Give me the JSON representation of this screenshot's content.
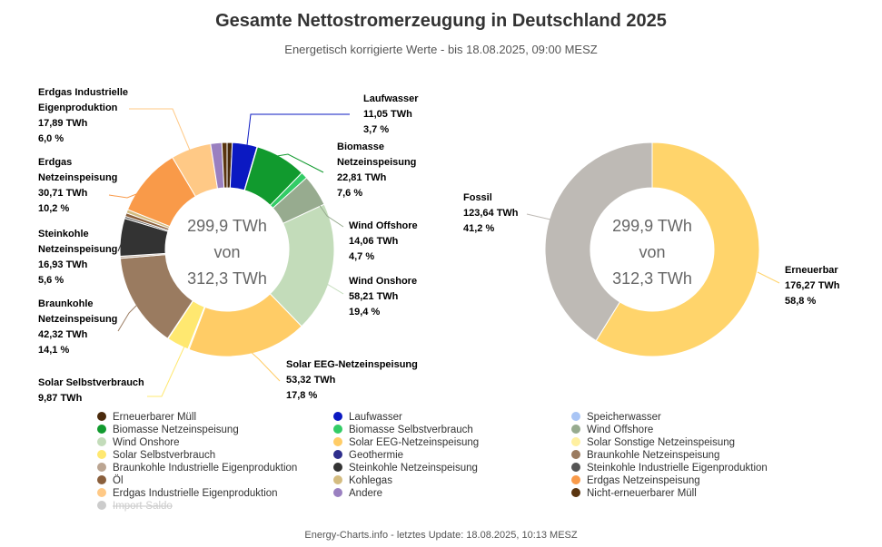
{
  "title": "Gesamte Nettostromerzeugung in Deutschland 2025",
  "subtitle": "Energetisch korrigierte Werte - bis 18.08.2025, 09:00 MESZ",
  "footer": "Energy-Charts.info - letztes Update: 18.08.2025, 10:13 MESZ",
  "chart_data": [
    {
      "type": "pie",
      "variant": "donut",
      "center_text": [
        "299,9 TWh",
        "von",
        "312,3 TWh"
      ],
      "unit": "TWh",
      "slices": [
        {
          "name": "Erneuerbarer Müll",
          "value": 2.3,
          "color": "#4a2a0c",
          "label": null
        },
        {
          "name": "Laufwasser",
          "value": 11.05,
          "color": "#0b19c2",
          "label": [
            "Laufwasser",
            "11,05 TWh",
            "3,7 %"
          ]
        },
        {
          "name": "Speicherwasser",
          "value": 0.2,
          "color": "#a9c5f5",
          "label": null
        },
        {
          "name": "Biomasse Netzeinspeisung",
          "value": 22.81,
          "color": "#119a2e",
          "label": [
            "Biomasse",
            "Netzeinspeisung",
            "22,81 TWh",
            "7,6 %"
          ]
        },
        {
          "name": "Biomasse Selbstverbrauch",
          "value": 3.0,
          "color": "#33cc66",
          "label": null
        },
        {
          "name": "Wind Offshore",
          "value": 14.06,
          "color": "#97ab8f",
          "label": [
            "Wind Offshore",
            "14,06 TWh",
            "4,7 %"
          ]
        },
        {
          "name": "Wind Onshore",
          "value": 58.21,
          "color": "#c3dcba",
          "label": [
            "Wind Onshore",
            "58,21 TWh",
            "19,4 %"
          ]
        },
        {
          "name": "Solar EEG-Netzeinspeisung",
          "value": 53.32,
          "color": "#ffcc66",
          "label": [
            "Solar EEG-Netzeinspeisung",
            "53,32 TWh",
            "17,8 %"
          ]
        },
        {
          "name": "Solar Sonstige Netzeinspeisung",
          "value": 0.5,
          "color": "#fff0a0",
          "label": null
        },
        {
          "name": "Solar Selbstverbrauch",
          "value": 9.87,
          "color": "#ffe870",
          "label": [
            "Solar Selbstverbrauch",
            "9,87 TWh"
          ]
        },
        {
          "name": "Geothermie",
          "value": 0.2,
          "color": "#2e2e8c",
          "label": null
        },
        {
          "name": "Braunkohle Netzeinspeisung",
          "value": 42.32,
          "color": "#9a7b60",
          "label": [
            "Braunkohle",
            "Netzeinspeisung",
            "42,32 TWh",
            "14,1 %"
          ]
        },
        {
          "name": "Braunkohle Industrielle Eigenproduktion",
          "value": 0.9,
          "color": "#bba592",
          "label": null
        },
        {
          "name": "Steinkohle Netzeinspeisung",
          "value": 16.93,
          "color": "#333333",
          "label": [
            "Steinkohle",
            "Netzeinspeisung",
            "16,93 TWh",
            "5,6 %"
          ]
        },
        {
          "name": "Steinkohle Industrielle Eigenproduktion",
          "value": 0.9,
          "color": "#555555",
          "label": null
        },
        {
          "name": "Öl",
          "value": 1.6,
          "color": "#8a5f3c",
          "label": null
        },
        {
          "name": "Kohlegas",
          "value": 1.6,
          "color": "#d4bc80",
          "label": null
        },
        {
          "name": "Erdgas Netzeinspeisung",
          "value": 30.71,
          "color": "#f99a49",
          "label": [
            "Erdgas",
            "Netzeinspeisung",
            "30,71 TWh",
            "10,2 %"
          ]
        },
        {
          "name": "Erdgas Industrielle Eigenproduktion",
          "value": 17.89,
          "color": "#ffc986",
          "label": [
            "Erdgas Industrielle",
            "Eigenproduktion",
            "17,89 TWh",
            "6,0 %"
          ]
        },
        {
          "name": "Andere",
          "value": 5.0,
          "color": "#9a80c0",
          "label": null
        },
        {
          "name": "Nicht-erneuerbarer Müll",
          "value": 2.3,
          "color": "#5a3510",
          "label": null
        }
      ]
    },
    {
      "type": "pie",
      "variant": "donut",
      "center_text": [
        "299,9 TWh",
        "von",
        "312,3 TWh"
      ],
      "unit": "TWh",
      "slices": [
        {
          "name": "Erneuerbar",
          "value": 176.27,
          "color": "#ffd46b",
          "label": [
            "Erneuerbar",
            "176,27 TWh",
            "58,8 %"
          ]
        },
        {
          "name": "Fossil",
          "value": 123.64,
          "color": "#bebab5",
          "label": [
            "Fossil",
            "123,64 TWh",
            "41,2 %"
          ]
        }
      ]
    }
  ],
  "legend": [
    {
      "name": "Erneuerbarer Müll",
      "color": "#4a2a0c",
      "enabled": true
    },
    {
      "name": "Laufwasser",
      "color": "#0b19c2",
      "enabled": true
    },
    {
      "name": "Speicherwasser",
      "color": "#a9c5f5",
      "enabled": true
    },
    {
      "name": "Biomasse Netzeinspeisung",
      "color": "#119a2e",
      "enabled": true
    },
    {
      "name": "Biomasse Selbstverbrauch",
      "color": "#33cc66",
      "enabled": true
    },
    {
      "name": "Wind Offshore",
      "color": "#97ab8f",
      "enabled": true
    },
    {
      "name": "Wind Onshore",
      "color": "#c3dcba",
      "enabled": true
    },
    {
      "name": "Solar EEG-Netzeinspeisung",
      "color": "#ffcc66",
      "enabled": true
    },
    {
      "name": "Solar Sonstige Netzeinspeisung",
      "color": "#fff0a0",
      "enabled": true
    },
    {
      "name": "Solar Selbstverbrauch",
      "color": "#ffe870",
      "enabled": true
    },
    {
      "name": "Geothermie",
      "color": "#2e2e8c",
      "enabled": true
    },
    {
      "name": "Braunkohle Netzeinspeisung",
      "color": "#9a7b60",
      "enabled": true
    },
    {
      "name": "Braunkohle Industrielle Eigenproduktion",
      "color": "#bba592",
      "enabled": true
    },
    {
      "name": "Steinkohle Netzeinspeisung",
      "color": "#333333",
      "enabled": true
    },
    {
      "name": "Steinkohle Industrielle Eigenproduktion",
      "color": "#555555",
      "enabled": true
    },
    {
      "name": "Öl",
      "color": "#8a5f3c",
      "enabled": true
    },
    {
      "name": "Kohlegas",
      "color": "#d4bc80",
      "enabled": true
    },
    {
      "name": "Erdgas Netzeinspeisung",
      "color": "#f99a49",
      "enabled": true
    },
    {
      "name": "Erdgas Industrielle Eigenproduktion",
      "color": "#ffc986",
      "enabled": true
    },
    {
      "name": "Andere",
      "color": "#9a80c0",
      "enabled": true
    },
    {
      "name": "Nicht-erneuerbarer Müll",
      "color": "#5a3510",
      "enabled": true
    },
    {
      "name": "Import-Saldo",
      "color": "#cccccc",
      "enabled": false
    }
  ]
}
